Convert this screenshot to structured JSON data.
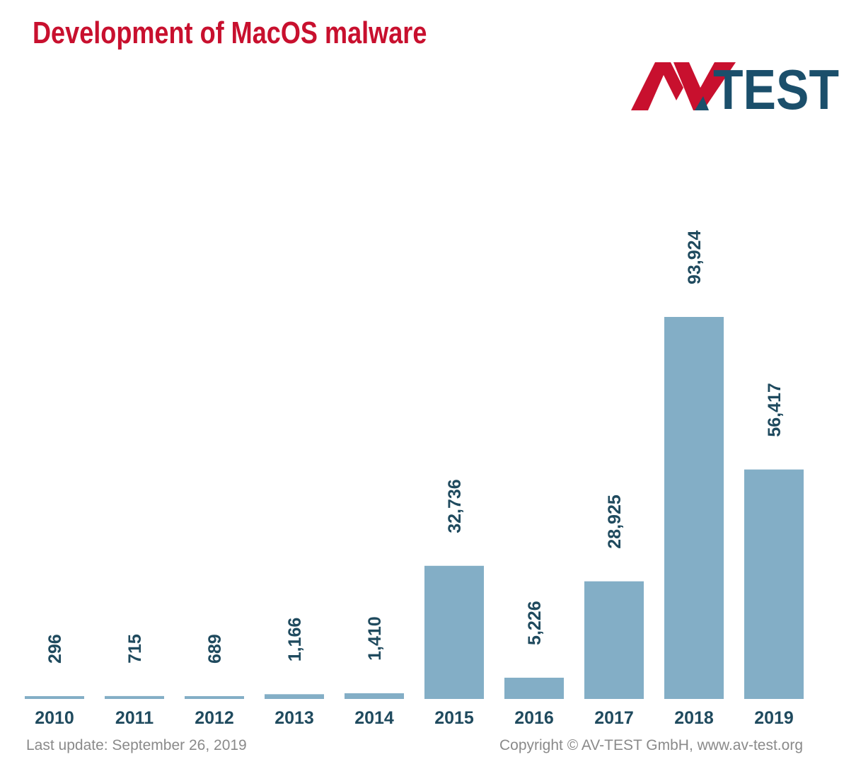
{
  "title": "Development of MacOS malware",
  "logo": {
    "text_red": "AV",
    "text_blue": "TEST",
    "color_red": "#c8102e",
    "color_blue": "#1b4f6b"
  },
  "footer": {
    "last_update": "Last update: September 26, 2019",
    "copyright": "Copyright © AV-TEST GmbH, www.av-test.org"
  },
  "colors": {
    "bar": "#83aec6",
    "label": "#1f4a5e",
    "title": "#c8102e"
  },
  "chart_data": {
    "type": "bar",
    "title": "Development of MacOS malware",
    "categories": [
      "2010",
      "2011",
      "2012",
      "2013",
      "2014",
      "2015",
      "2016",
      "2017",
      "2018",
      "2019"
    ],
    "values": [
      296,
      715,
      689,
      1166,
      1410,
      32736,
      5226,
      28925,
      93924,
      56417
    ],
    "value_labels": [
      "296",
      "715",
      "689",
      "1,166",
      "1,410",
      "32,736",
      "5,226",
      "28,925",
      "93,924",
      "56,417"
    ],
    "xlabel": "",
    "ylabel": "",
    "ylim": [
      0,
      100000
    ],
    "grid": false,
    "legend": "none"
  }
}
